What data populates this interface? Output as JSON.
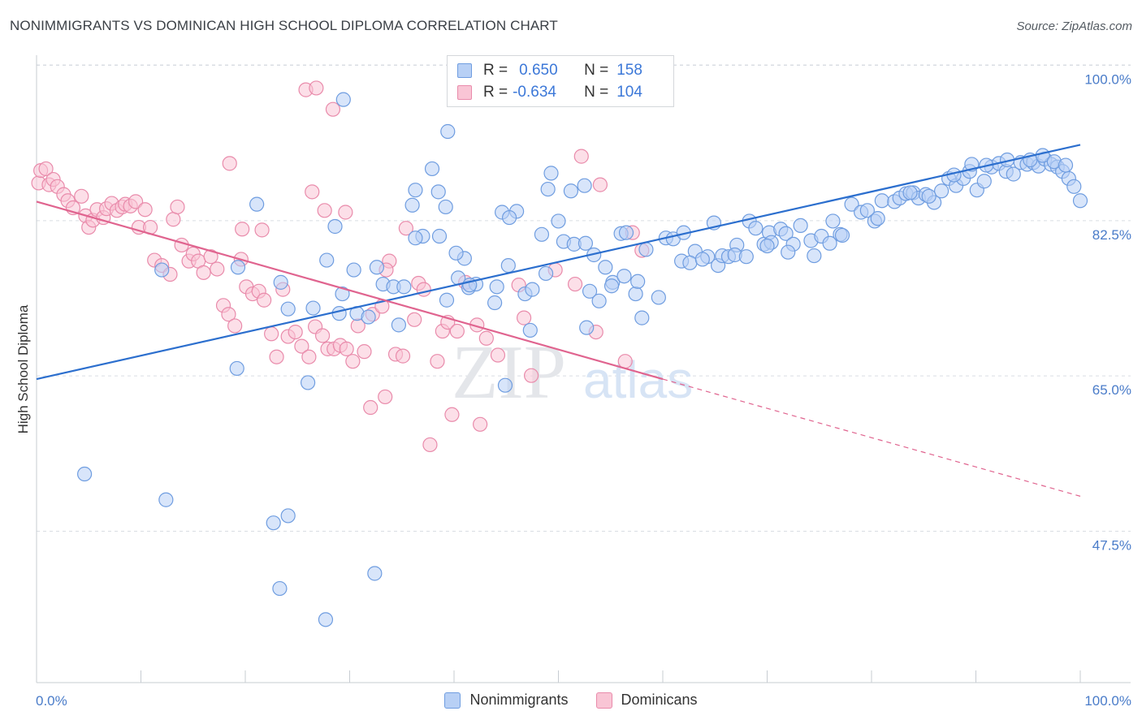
{
  "title": "NONIMMIGRANTS VS DOMINICAN HIGH SCHOOL DIPLOMA CORRELATION CHART",
  "source": "Source: ZipAtlas.com",
  "watermark": {
    "zip": "ZIP",
    "atlas": "atlas"
  },
  "legend": {
    "rows": [
      {
        "r_label": "R =",
        "r_value": "0.650",
        "n_label": "N =",
        "n_value": "158"
      },
      {
        "r_label": "R =",
        "r_value": "-0.634",
        "n_label": "N =",
        "n_value": "104"
      }
    ]
  },
  "bottom_legend": [
    "Nonimmigrants",
    "Dominicans"
  ],
  "colors": {
    "blue_fill": "#b8d0f5",
    "blue_stroke": "#6f9de0",
    "blue_line": "#2c6fce",
    "pink_fill": "#f9c5d5",
    "pink_stroke": "#e98bab",
    "pink_line": "#e0648f",
    "tick_text": "#4a7cc9",
    "grid": "#d9dde3"
  },
  "chart_data": {
    "type": "scatter",
    "ylabel": "High School Diploma",
    "xlabel": "",
    "xlim": [
      0,
      100
    ],
    "ylim": [
      32,
      101.5
    ],
    "y_ticks": [
      100.0,
      82.5,
      65.0,
      47.5
    ],
    "y_tick_labels": [
      "100.0%",
      "82.5%",
      "65.0%",
      "47.5%"
    ],
    "x_tick_labels": [
      "0.0%",
      "100.0%"
    ],
    "grid": true,
    "legend_placement": "top-center",
    "series": [
      {
        "name": "Nonimmigrants",
        "trend": {
          "x": [
            0,
            100
          ],
          "y": [
            66.2,
            92.6
          ]
        },
        "points": [
          [
            4.6,
            55.5
          ],
          [
            12.4,
            52.6
          ],
          [
            22.7,
            50.0
          ],
          [
            24.1,
            50.8
          ],
          [
            23.3,
            42.6
          ],
          [
            27.7,
            39.1
          ],
          [
            32.4,
            44.3
          ],
          [
            19.2,
            67.4
          ],
          [
            26.0,
            65.8
          ],
          [
            44.9,
            65.5
          ],
          [
            21.1,
            85.9
          ],
          [
            27.8,
            79.6
          ],
          [
            28.6,
            83.4
          ],
          [
            23.4,
            77.1
          ],
          [
            24.1,
            74.1
          ],
          [
            26.5,
            74.2
          ],
          [
            29.0,
            73.6
          ],
          [
            30.7,
            73.6
          ],
          [
            30.4,
            78.5
          ],
          [
            32.6,
            78.8
          ],
          [
            33.2,
            76.9
          ],
          [
            34.2,
            76.6
          ],
          [
            35.2,
            76.6
          ],
          [
            37.0,
            82.3
          ],
          [
            36.3,
            82.1
          ],
          [
            38.6,
            82.3
          ],
          [
            39.3,
            75.1
          ],
          [
            40.4,
            77.6
          ],
          [
            41.0,
            79.8
          ],
          [
            41.4,
            76.5
          ],
          [
            42.1,
            76.9
          ],
          [
            43.9,
            74.8
          ],
          [
            44.6,
            85.0
          ],
          [
            46.0,
            85.1
          ],
          [
            45.2,
            79.0
          ],
          [
            46.8,
            75.8
          ],
          [
            47.3,
            71.7
          ],
          [
            48.4,
            82.5
          ],
          [
            50.0,
            84.0
          ],
          [
            50.5,
            81.7
          ],
          [
            51.5,
            81.4
          ],
          [
            52.6,
            81.5
          ],
          [
            53.4,
            80.2
          ],
          [
            54.5,
            78.8
          ],
          [
            55.2,
            77.1
          ],
          [
            56.3,
            77.8
          ],
          [
            57.4,
            75.8
          ],
          [
            58.0,
            73.1
          ],
          [
            59.6,
            75.4
          ],
          [
            60.3,
            82.1
          ],
          [
            61.0,
            82.0
          ],
          [
            62.0,
            82.7
          ],
          [
            63.1,
            80.6
          ],
          [
            64.3,
            80.0
          ],
          [
            65.3,
            79.0
          ],
          [
            65.7,
            80.1
          ],
          [
            66.3,
            80.0
          ],
          [
            67.1,
            81.3
          ],
          [
            68.3,
            84.0
          ],
          [
            68.9,
            83.2
          ],
          [
            69.7,
            81.4
          ],
          [
            70.2,
            82.7
          ],
          [
            71.3,
            83.1
          ],
          [
            71.8,
            82.6
          ],
          [
            72.5,
            81.4
          ],
          [
            73.2,
            83.5
          ],
          [
            74.2,
            81.8
          ],
          [
            75.2,
            82.3
          ],
          [
            76.0,
            81.5
          ],
          [
            77.0,
            82.5
          ],
          [
            78.1,
            85.9
          ],
          [
            79.0,
            85.0
          ],
          [
            79.6,
            85.2
          ],
          [
            80.3,
            84.0
          ],
          [
            81.0,
            86.3
          ],
          [
            82.2,
            86.2
          ],
          [
            82.7,
            86.6
          ],
          [
            83.3,
            87.1
          ],
          [
            84.0,
            87.2
          ],
          [
            84.5,
            86.6
          ],
          [
            85.2,
            87.0
          ],
          [
            86.0,
            86.1
          ],
          [
            86.7,
            87.4
          ],
          [
            87.4,
            88.8
          ],
          [
            88.1,
            88.0
          ],
          [
            88.8,
            88.8
          ],
          [
            89.4,
            89.6
          ],
          [
            90.1,
            87.5
          ],
          [
            90.8,
            88.5
          ],
          [
            91.5,
            90.1
          ],
          [
            92.2,
            90.5
          ],
          [
            92.9,
            89.6
          ],
          [
            93.6,
            89.3
          ],
          [
            94.3,
            90.6
          ],
          [
            94.9,
            90.4
          ],
          [
            95.5,
            90.6
          ],
          [
            96.0,
            90.2
          ],
          [
            96.6,
            91.0
          ],
          [
            97.2,
            90.4
          ],
          [
            97.8,
            90.1
          ],
          [
            98.3,
            89.6
          ],
          [
            98.9,
            88.8
          ],
          [
            99.4,
            87.9
          ],
          [
            100.0,
            86.3
          ],
          [
            12.0,
            78.5
          ],
          [
            19.3,
            78.8
          ],
          [
            36.0,
            85.8
          ],
          [
            45.3,
            84.4
          ],
          [
            47.5,
            76.3
          ],
          [
            42.7,
            98.9
          ],
          [
            29.4,
            97.7
          ],
          [
            39.4,
            94.1
          ],
          [
            37.9,
            89.9
          ],
          [
            38.5,
            87.3
          ],
          [
            39.2,
            85.6
          ],
          [
            36.3,
            87.5
          ],
          [
            49.0,
            87.6
          ],
          [
            51.2,
            87.4
          ],
          [
            49.3,
            89.4
          ],
          [
            52.5,
            88.0
          ],
          [
            56.0,
            82.6
          ],
          [
            56.5,
            82.7
          ],
          [
            58.4,
            80.8
          ],
          [
            61.8,
            79.5
          ],
          [
            62.6,
            79.3
          ],
          [
            64.9,
            83.8
          ],
          [
            66.9,
            80.2
          ],
          [
            68.0,
            80.0
          ],
          [
            70.4,
            81.6
          ],
          [
            72.0,
            80.5
          ],
          [
            74.5,
            80.1
          ],
          [
            76.3,
            84.0
          ],
          [
            77.2,
            82.4
          ],
          [
            80.6,
            84.3
          ],
          [
            83.7,
            87.2
          ],
          [
            85.5,
            86.8
          ],
          [
            87.9,
            89.2
          ],
          [
            89.6,
            90.4
          ],
          [
            91.0,
            90.3
          ],
          [
            93.0,
            90.9
          ],
          [
            95.2,
            90.9
          ],
          [
            96.4,
            91.4
          ],
          [
            97.5,
            90.7
          ],
          [
            98.6,
            90.3
          ],
          [
            55.1,
            76.7
          ],
          [
            57.6,
            77.2
          ],
          [
            63.8,
            79.7
          ],
          [
            70.0,
            81.2
          ],
          [
            40.2,
            80.4
          ],
          [
            41.5,
            76.8
          ],
          [
            44.1,
            76.6
          ],
          [
            48.8,
            78.1
          ],
          [
            52.7,
            72.0
          ],
          [
            53.0,
            76.1
          ],
          [
            53.9,
            75.0
          ],
          [
            31.8,
            73.2
          ],
          [
            29.3,
            75.8
          ],
          [
            34.7,
            72.3
          ]
        ]
      },
      {
        "name": "Dominicans",
        "trend": {
          "x": [
            0,
            60,
            100
          ],
          "y": [
            86.2,
            66.2,
            53.0
          ]
        },
        "points": [
          [
            0.2,
            88.3
          ],
          [
            0.4,
            89.7
          ],
          [
            0.9,
            89.9
          ],
          [
            1.2,
            88.1
          ],
          [
            1.6,
            88.7
          ],
          [
            2.0,
            87.9
          ],
          [
            2.6,
            87.0
          ],
          [
            3.0,
            86.3
          ],
          [
            3.5,
            85.5
          ],
          [
            4.3,
            86.8
          ],
          [
            4.7,
            84.6
          ],
          [
            5.0,
            83.3
          ],
          [
            5.4,
            84.1
          ],
          [
            5.8,
            85.3
          ],
          [
            6.4,
            84.4
          ],
          [
            6.7,
            85.4
          ],
          [
            7.2,
            86.0
          ],
          [
            7.7,
            85.2
          ],
          [
            8.2,
            85.6
          ],
          [
            8.5,
            85.9
          ],
          [
            9.0,
            85.7
          ],
          [
            9.5,
            86.2
          ],
          [
            9.8,
            83.3
          ],
          [
            10.4,
            85.3
          ],
          [
            10.9,
            83.3
          ],
          [
            11.3,
            79.6
          ],
          [
            12.0,
            79.0
          ],
          [
            12.8,
            78.0
          ],
          [
            13.1,
            84.2
          ],
          [
            13.5,
            85.6
          ],
          [
            13.9,
            81.3
          ],
          [
            14.6,
            79.5
          ],
          [
            15.0,
            80.3
          ],
          [
            15.5,
            79.5
          ],
          [
            16.0,
            78.2
          ],
          [
            16.7,
            80.0
          ],
          [
            17.3,
            78.6
          ],
          [
            17.9,
            74.5
          ],
          [
            18.4,
            73.5
          ],
          [
            19.0,
            72.2
          ],
          [
            19.6,
            79.7
          ],
          [
            20.1,
            76.6
          ],
          [
            20.7,
            75.8
          ],
          [
            21.3,
            76.1
          ],
          [
            21.8,
            75.1
          ],
          [
            22.5,
            71.3
          ],
          [
            23.0,
            68.7
          ],
          [
            23.6,
            76.3
          ],
          [
            24.1,
            71.0
          ],
          [
            24.8,
            71.5
          ],
          [
            25.4,
            69.9
          ],
          [
            26.1,
            68.7
          ],
          [
            26.7,
            72.1
          ],
          [
            27.4,
            71.1
          ],
          [
            27.9,
            69.6
          ],
          [
            28.5,
            69.6
          ],
          [
            29.1,
            70.0
          ],
          [
            29.7,
            69.6
          ],
          [
            30.3,
            68.2
          ],
          [
            30.8,
            72.2
          ],
          [
            31.4,
            69.3
          ],
          [
            32.2,
            73.5
          ],
          [
            33.1,
            74.4
          ],
          [
            34.4,
            69.0
          ],
          [
            35.1,
            68.8
          ],
          [
            36.2,
            72.9
          ],
          [
            36.6,
            77.0
          ],
          [
            37.1,
            76.3
          ],
          [
            38.4,
            68.2
          ],
          [
            38.9,
            71.6
          ],
          [
            39.4,
            72.6
          ],
          [
            40.3,
            71.6
          ],
          [
            41.1,
            77.1
          ],
          [
            42.2,
            72.3
          ],
          [
            43.1,
            70.8
          ],
          [
            44.2,
            68.9
          ],
          [
            46.2,
            76.8
          ],
          [
            46.7,
            73.1
          ],
          [
            47.4,
            66.6
          ],
          [
            49.7,
            78.5
          ],
          [
            51.6,
            76.9
          ],
          [
            53.6,
            71.5
          ],
          [
            56.4,
            68.2
          ],
          [
            52.2,
            91.3
          ],
          [
            54.0,
            88.1
          ],
          [
            57.1,
            82.7
          ],
          [
            58.0,
            80.7
          ],
          [
            35.4,
            83.2
          ],
          [
            33.8,
            79.5
          ],
          [
            33.5,
            78.5
          ],
          [
            25.8,
            98.8
          ],
          [
            26.8,
            99.0
          ],
          [
            28.4,
            96.6
          ],
          [
            18.5,
            90.5
          ],
          [
            19.7,
            83.1
          ],
          [
            21.6,
            83.0
          ],
          [
            26.4,
            87.3
          ],
          [
            27.6,
            85.2
          ],
          [
            29.6,
            85.0
          ],
          [
            32.0,
            63.0
          ],
          [
            33.4,
            64.2
          ],
          [
            37.7,
            58.8
          ],
          [
            39.8,
            62.2
          ],
          [
            42.5,
            61.1
          ]
        ]
      }
    ]
  }
}
